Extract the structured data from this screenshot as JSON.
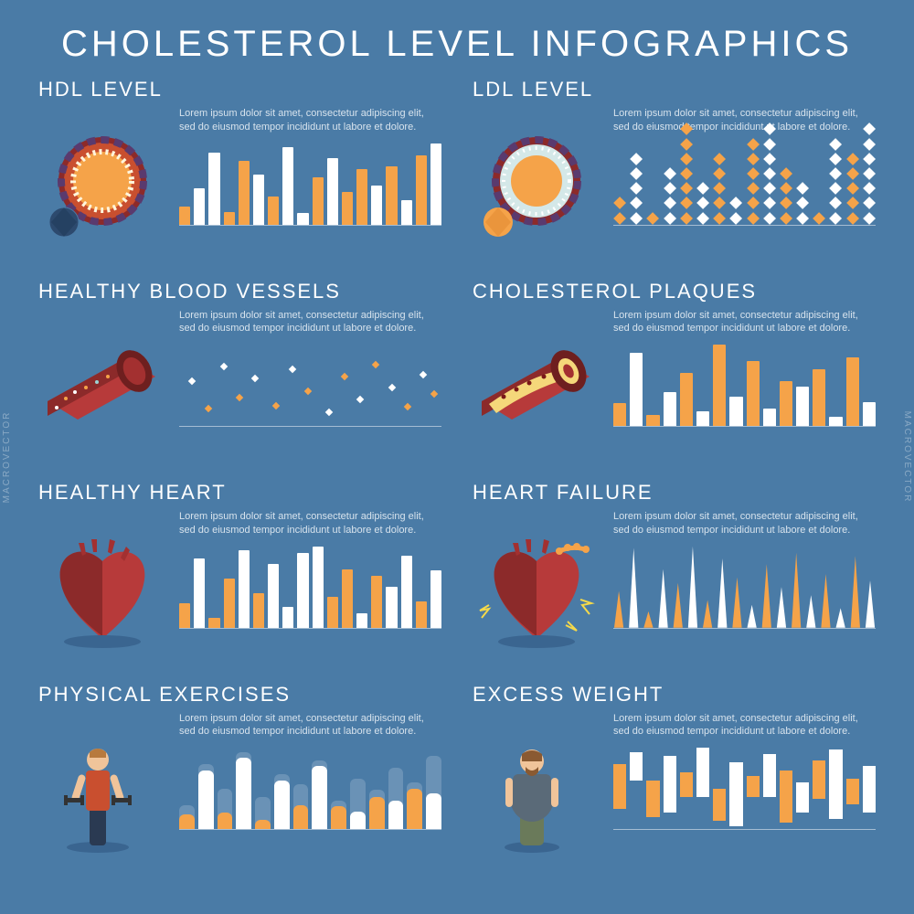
{
  "title": "CHOLESTEROL LEVEL INFOGRAPHICS",
  "watermark": "macrovector",
  "background_color": "#4a7ba6",
  "text_color": "#ffffff",
  "desc_color": "#d7e3ed",
  "color_orange": "#f5a349",
  "color_white": "#ffffff",
  "color_translucent": "rgba(255,255,255,0.35)",
  "placeholder": "Lorem ipsum dolor sit amet, consectetur adipiscing elit, sed do eiusmod tempor incididunt ut labore et dolore.",
  "panels": [
    {
      "key": "hdl",
      "title": "HDL LEVEL",
      "illus": "lipoprotein-dark",
      "chart": {
        "type": "bar",
        "values": [
          22,
          45,
          88,
          15,
          78,
          62,
          35,
          95,
          14,
          58,
          82,
          40,
          68,
          48,
          72,
          30,
          85,
          100
        ],
        "colors": [
          "o",
          "w",
          "w",
          "o",
          "o",
          "w",
          "o",
          "w",
          "w",
          "o",
          "w",
          "o",
          "o",
          "w",
          "o",
          "w",
          "o",
          "w"
        ]
      }
    },
    {
      "key": "ldl",
      "title": "LDL LEVEL",
      "illus": "lipoprotein-light",
      "chart": {
        "type": "dstack",
        "columns": [
          {
            "n": 2,
            "c": "o"
          },
          {
            "n": 5,
            "c": "w"
          },
          {
            "n": 1,
            "c": "o"
          },
          {
            "n": 4,
            "c": "w"
          },
          {
            "n": 7,
            "c": "o"
          },
          {
            "n": 3,
            "c": "w"
          },
          {
            "n": 5,
            "c": "o"
          },
          {
            "n": 2,
            "c": "w"
          },
          {
            "n": 6,
            "c": "o"
          },
          {
            "n": 7,
            "c": "w"
          },
          {
            "n": 4,
            "c": "o"
          },
          {
            "n": 3,
            "c": "w"
          },
          {
            "n": 1,
            "c": "o"
          },
          {
            "n": 6,
            "c": "w"
          },
          {
            "n": 5,
            "c": "o"
          },
          {
            "n": 7,
            "c": "w"
          }
        ]
      }
    },
    {
      "key": "vessels",
      "title": "HEALTHY BLOOD VESSELS",
      "illus": "vessel-healthy",
      "chart": {
        "type": "scatter",
        "points": [
          {
            "x": 4,
            "y": 52,
            "c": "w"
          },
          {
            "x": 10,
            "y": 18,
            "c": "o"
          },
          {
            "x": 16,
            "y": 70,
            "c": "w"
          },
          {
            "x": 22,
            "y": 32,
            "c": "o"
          },
          {
            "x": 28,
            "y": 55,
            "c": "w"
          },
          {
            "x": 36,
            "y": 22,
            "c": "o"
          },
          {
            "x": 42,
            "y": 66,
            "c": "w"
          },
          {
            "x": 48,
            "y": 40,
            "c": "o"
          },
          {
            "x": 56,
            "y": 14,
            "c": "w"
          },
          {
            "x": 62,
            "y": 58,
            "c": "o"
          },
          {
            "x": 68,
            "y": 30,
            "c": "w"
          },
          {
            "x": 74,
            "y": 72,
            "c": "o"
          },
          {
            "x": 80,
            "y": 44,
            "c": "w"
          },
          {
            "x": 86,
            "y": 20,
            "c": "o"
          },
          {
            "x": 92,
            "y": 60,
            "c": "w"
          },
          {
            "x": 96,
            "y": 36,
            "c": "o"
          }
        ]
      }
    },
    {
      "key": "plaques",
      "title": "CHOLESTEROL PLAQUES",
      "illus": "vessel-plaque",
      "chart": {
        "type": "bar",
        "values": [
          28,
          90,
          14,
          42,
          65,
          18,
          100,
          36,
          80,
          22,
          55,
          48,
          70,
          12,
          85,
          30
        ],
        "colors": [
          "o",
          "w",
          "o",
          "w",
          "o",
          "w",
          "o",
          "w",
          "o",
          "w",
          "o",
          "w",
          "o",
          "w",
          "o",
          "w"
        ]
      }
    },
    {
      "key": "healthy_heart",
      "title": "HEALTHY HEART",
      "illus": "heart-healthy",
      "chart": {
        "type": "bar",
        "values": [
          30,
          85,
          12,
          60,
          95,
          42,
          78,
          25,
          92,
          100,
          38,
          72,
          18,
          64,
          50,
          88,
          32,
          70
        ],
        "colors": [
          "o",
          "w",
          "o",
          "o",
          "w",
          "o",
          "w",
          "w",
          "w",
          "w",
          "o",
          "o",
          "w",
          "o",
          "w",
          "w",
          "o",
          "w"
        ]
      }
    },
    {
      "key": "heart_failure",
      "title": "HEART FAILURE",
      "illus": "heart-failure",
      "chart": {
        "type": "spike",
        "values": [
          45,
          98,
          20,
          72,
          55,
          100,
          34,
          85,
          62,
          28,
          78,
          50,
          92,
          40,
          66,
          24,
          88,
          58
        ],
        "colors": [
          "o",
          "w",
          "o",
          "w",
          "o",
          "w",
          "o",
          "w",
          "o",
          "w",
          "o",
          "w",
          "o",
          "w",
          "o",
          "w",
          "o",
          "w"
        ]
      }
    },
    {
      "key": "exercise",
      "title": "PHYSICAL EXERCISES",
      "illus": "person-fit",
      "chart": {
        "type": "capsule",
        "bars": [
          {
            "h": 30,
            "f": 18,
            "c": "o"
          },
          {
            "h": 80,
            "f": 72,
            "c": "w"
          },
          {
            "h": 50,
            "f": 20,
            "c": "o"
          },
          {
            "h": 95,
            "f": 88,
            "c": "w"
          },
          {
            "h": 40,
            "f": 12,
            "c": "o"
          },
          {
            "h": 68,
            "f": 60,
            "c": "w"
          },
          {
            "h": 55,
            "f": 30,
            "c": "o"
          },
          {
            "h": 85,
            "f": 78,
            "c": "w"
          },
          {
            "h": 35,
            "f": 28,
            "c": "o"
          },
          {
            "h": 62,
            "f": 22,
            "c": "w"
          },
          {
            "h": 48,
            "f": 40,
            "c": "o"
          },
          {
            "h": 75,
            "f": 35,
            "c": "w"
          },
          {
            "h": 58,
            "f": 50,
            "c": "o"
          },
          {
            "h": 90,
            "f": 44,
            "c": "w"
          }
        ]
      }
    },
    {
      "key": "weight",
      "title": "EXCESS WEIGHT",
      "illus": "person-heavy",
      "chart": {
        "type": "offset",
        "bars": [
          {
            "t": 20,
            "h": 55,
            "c": "o"
          },
          {
            "t": 5,
            "h": 35,
            "c": "w"
          },
          {
            "t": 40,
            "h": 45,
            "c": "o"
          },
          {
            "t": 10,
            "h": 70,
            "c": "w"
          },
          {
            "t": 30,
            "h": 30,
            "c": "o"
          },
          {
            "t": 0,
            "h": 60,
            "c": "w"
          },
          {
            "t": 50,
            "h": 40,
            "c": "o"
          },
          {
            "t": 18,
            "h": 78,
            "c": "w"
          },
          {
            "t": 35,
            "h": 25,
            "c": "o"
          },
          {
            "t": 8,
            "h": 52,
            "c": "w"
          },
          {
            "t": 28,
            "h": 64,
            "c": "o"
          },
          {
            "t": 42,
            "h": 38,
            "c": "w"
          },
          {
            "t": 15,
            "h": 48,
            "c": "o"
          },
          {
            "t": 2,
            "h": 85,
            "c": "w"
          },
          {
            "t": 38,
            "h": 32,
            "c": "o"
          },
          {
            "t": 22,
            "h": 58,
            "c": "w"
          }
        ]
      }
    }
  ]
}
